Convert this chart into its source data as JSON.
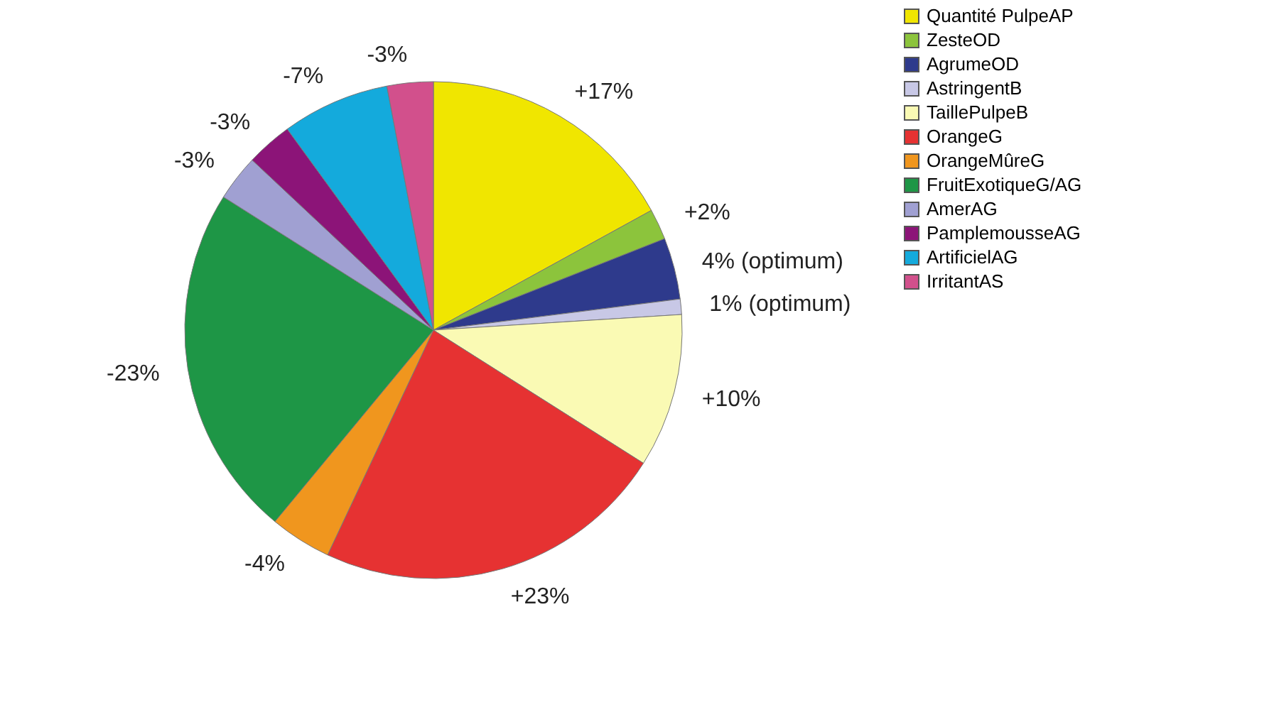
{
  "chart_data": {
    "type": "pie",
    "categories": [
      "Quantité PulpeAP",
      "ZesteOD",
      "AgrumeOD",
      "AstringentB",
      "TaillePulpeB",
      "OrangeG",
      "OrangeMûreG",
      "FruitExotiqueG/AG",
      "AmerAG",
      "PamplemousseAG",
      "ArtificielAG",
      "IrritantAS"
    ],
    "values": [
      17,
      2,
      4,
      1,
      10,
      23,
      4,
      23,
      3,
      3,
      7,
      3
    ],
    "annotations": [
      "+17%",
      "+2%",
      "4% (optimum)",
      "1% (optimum)",
      "+10%",
      "+23%",
      "-4%",
      "-23%",
      "-3%",
      "-3%",
      "-7%",
      "-3%"
    ],
    "colors": [
      "#f0e600",
      "#8cc43c",
      "#2e3a8c",
      "#c8c8e6",
      "#fafab4",
      "#e63232",
      "#f0961e",
      "#1e9646",
      "#a0a0d2",
      "#8c1478",
      "#14aadc",
      "#d2508c"
    ],
    "legend": "right"
  }
}
